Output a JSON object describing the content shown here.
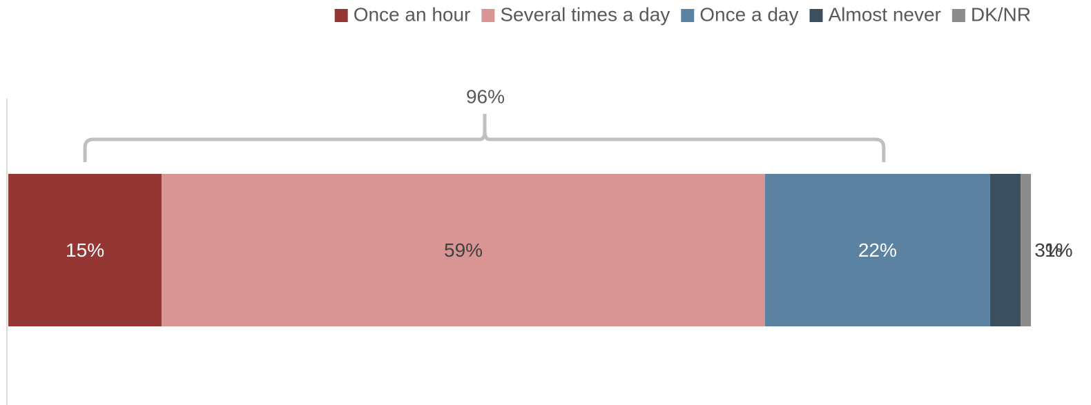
{
  "chart_data": {
    "type": "bar",
    "orientation": "horizontal",
    "stacked": true,
    "categories": [
      null
    ],
    "xlim": [
      0,
      100
    ],
    "legend": "top-right",
    "annotation": "96%",
    "series": [
      {
        "name": "Once an hour",
        "color": "#943634",
        "values": [
          15
        ],
        "value_labels": [
          "15%"
        ]
      },
      {
        "name": "Several times a day",
        "color": "#d99594",
        "values": [
          59
        ],
        "value_labels": [
          "59%"
        ]
      },
      {
        "name": "Once a day",
        "color": "#5b82a1",
        "values": [
          22
        ],
        "value_labels": [
          "22%"
        ]
      },
      {
        "name": "Almost never",
        "color": "#3b4f5f",
        "values": [
          3
        ],
        "value_labels": [
          "3%"
        ]
      },
      {
        "name": "DK/NR",
        "color": "#8c8c8c",
        "values": [
          1
        ],
        "value_labels": [
          "1%"
        ]
      }
    ]
  }
}
